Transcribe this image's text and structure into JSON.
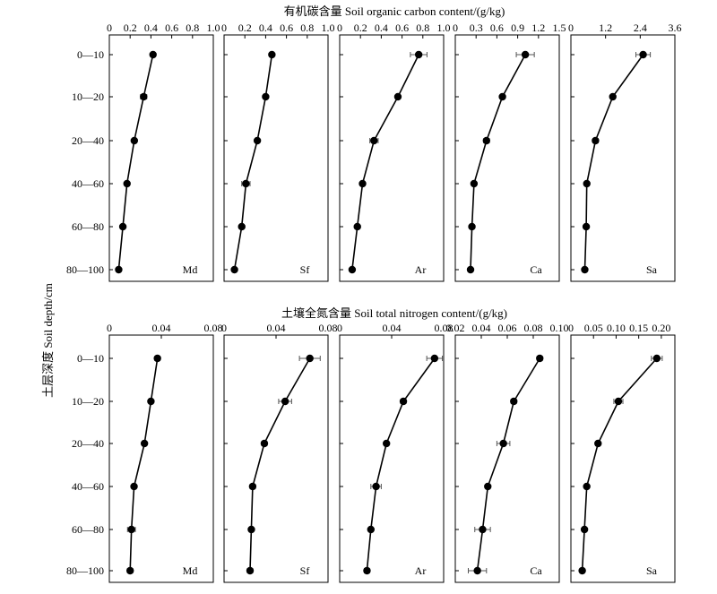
{
  "chart_data": {
    "type": "line",
    "ylabel": "土层深度 Soil depth/cm",
    "depth_categories": [
      "0—10",
      "10—20",
      "20—40",
      "40—60",
      "60—80",
      "80—100"
    ],
    "rows": [
      {
        "title": "有机碳含量 Soil organic carbon content/(g/kg)",
        "panels": [
          {
            "name": "Md",
            "xlim": [
              0,
              1.0
            ],
            "ticks": [
              "0",
              "0.2",
              "0.4",
              "0.6",
              "0.8",
              "1.0"
            ],
            "tick_values": [
              0,
              0.2,
              0.4,
              0.6,
              0.8,
              1.0
            ],
            "values": [
              0.42,
              0.33,
              0.24,
              0.17,
              0.13,
              0.09
            ],
            "errors": [
              0.01,
              0.03,
              0.01,
              0.02,
              0.01,
              0.01
            ]
          },
          {
            "name": "Sf",
            "xlim": [
              0,
              1.0
            ],
            "ticks": [
              "0",
              "0.2",
              "0.4",
              "0.6",
              "0.8",
              "1.0"
            ],
            "tick_values": [
              0,
              0.2,
              0.4,
              0.6,
              0.8,
              1.0
            ],
            "values": [
              0.46,
              0.4,
              0.32,
              0.21,
              0.17,
              0.1
            ],
            "errors": [
              0.01,
              0.02,
              0.02,
              0.04,
              0.02,
              0.02
            ]
          },
          {
            "name": "Ar",
            "xlim": [
              0,
              1.0
            ],
            "ticks": [
              "0",
              "0.2",
              "0.4",
              "0.6",
              "0.8",
              "1.0"
            ],
            "tick_values": [
              0,
              0.2,
              0.4,
              0.6,
              0.8,
              1.0
            ],
            "values": [
              0.76,
              0.56,
              0.33,
              0.22,
              0.17,
              0.12
            ],
            "errors": [
              0.08,
              0.02,
              0.04,
              0.02,
              0.01,
              0.01
            ]
          },
          {
            "name": "Ca",
            "xlim": [
              0,
              1.5
            ],
            "ticks": [
              "0",
              "0.3",
              "0.6",
              "0.9",
              "1.2",
              "1.5"
            ],
            "tick_values": [
              0,
              0.3,
              0.6,
              0.9,
              1.2,
              1.5
            ],
            "values": [
              1.01,
              0.68,
              0.45,
              0.27,
              0.24,
              0.22
            ],
            "errors": [
              0.13,
              0.03,
              0.04,
              0.02,
              0.02,
              0.03
            ]
          },
          {
            "name": "Sa",
            "xlim": [
              0,
              3.6
            ],
            "ticks": [
              "0",
              "1.2",
              "2.4",
              "3.6"
            ],
            "tick_values": [
              0,
              1.2,
              2.4,
              3.6
            ],
            "values": [
              2.5,
              1.45,
              0.85,
              0.55,
              0.53,
              0.48
            ],
            "errors": [
              0.25,
              0.06,
              0.09,
              0.08,
              0.06,
              0.06
            ]
          }
        ]
      },
      {
        "title": "土壤全氮含量 Soil total nitrogen content/(g/kg)",
        "panels": [
          {
            "name": "Md",
            "xlim": [
              0,
              0.08
            ],
            "ticks": [
              "0",
              "0.04",
              "0.08"
            ],
            "tick_values": [
              0,
              0.04,
              0.08
            ],
            "values": [
              0.037,
              0.032,
              0.027,
              0.019,
              0.017,
              0.016
            ],
            "errors": [
              0.002,
              0.001,
              0.001,
              0.001,
              0.003,
              0.002
            ]
          },
          {
            "name": "Sf",
            "xlim": [
              0,
              0.08
            ],
            "ticks": [
              "0",
              "0.04",
              "0.08"
            ],
            "tick_values": [
              0,
              0.04,
              0.08
            ],
            "values": [
              0.066,
              0.047,
              0.031,
              0.022,
              0.021,
              0.02
            ],
            "errors": [
              0.008,
              0.005,
              0.002,
              0.002,
              0.001,
              0.002
            ]
          },
          {
            "name": "Ar",
            "xlim": [
              0,
              0.08
            ],
            "ticks": [
              "0",
              "0.04",
              "0.08"
            ],
            "tick_values": [
              0,
              0.04,
              0.08
            ],
            "values": [
              0.073,
              0.049,
              0.036,
              0.028,
              0.024,
              0.021
            ],
            "errors": [
              0.006,
              0.002,
              0.001,
              0.004,
              0.001,
              0.002
            ]
          },
          {
            "name": "Ca",
            "xlim": [
              0.02,
              0.1
            ],
            "ticks": [
              "0.02",
              "0.04",
              "0.06",
              "0.08",
              "0.10"
            ],
            "tick_values": [
              0.02,
              0.04,
              0.06,
              0.08,
              0.1
            ],
            "values": [
              0.085,
              0.065,
              0.057,
              0.045,
              0.041,
              0.037
            ],
            "errors": [
              0.002,
              0.002,
              0.005,
              0.001,
              0.006,
              0.007
            ]
          },
          {
            "name": "Sa",
            "xlim": [
              0,
              0.23
            ],
            "ticks": [
              "0",
              "0.05",
              "0.10",
              "0.15",
              "0.20"
            ],
            "tick_values": [
              0,
              0.05,
              0.1,
              0.15,
              0.2
            ],
            "values": [
              0.19,
              0.105,
              0.06,
              0.035,
              0.03,
              0.025
            ],
            "errors": [
              0.012,
              0.01,
              0.005,
              0.004,
              0.004,
              0.003
            ]
          }
        ]
      }
    ]
  }
}
